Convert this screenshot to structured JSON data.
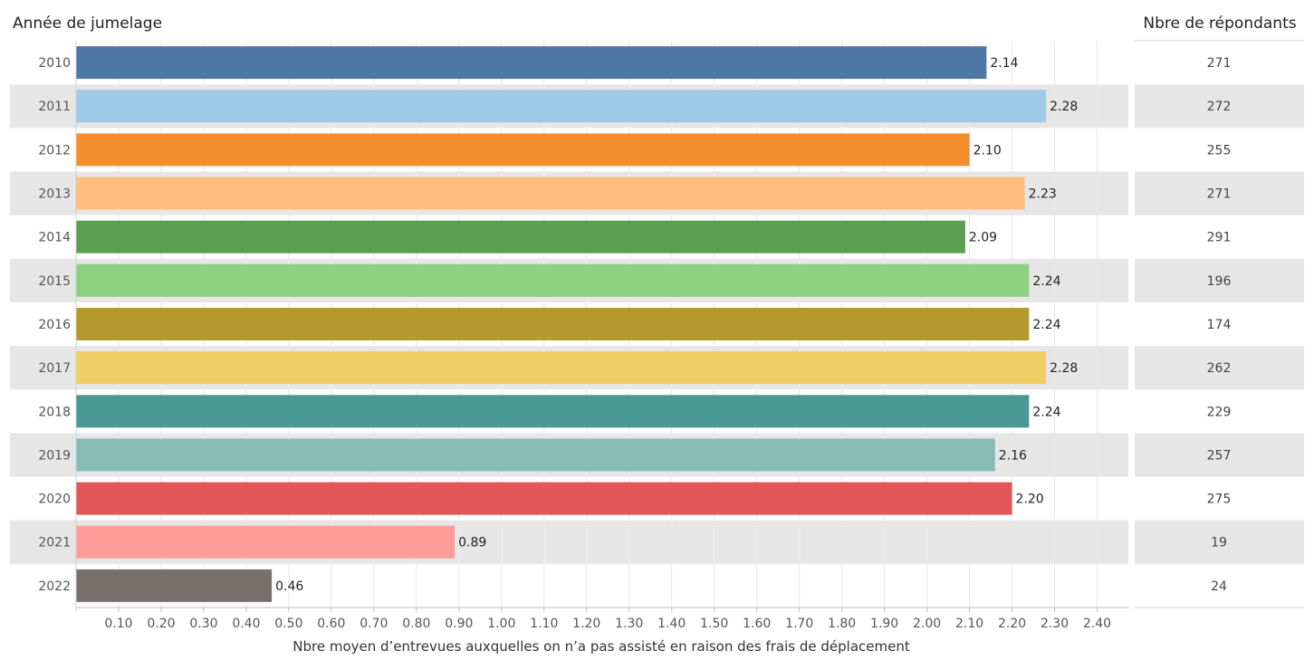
{
  "header": {
    "row_title": "Année de jumelage",
    "count_title": "Nbre de répondants"
  },
  "chart_data": {
    "type": "bar",
    "orientation": "horizontal",
    "xlabel": "Nbre moyen d’entrevues auxquelles on n’a pas assisté en raison des frais de déplacement",
    "xlim": [
      0,
      2.48
    ],
    "xticks": [
      0.1,
      0.2,
      0.3,
      0.4,
      0.5,
      0.6,
      0.7,
      0.8,
      0.9,
      1.0,
      1.1,
      1.2,
      1.3,
      1.4,
      1.5,
      1.6,
      1.7,
      1.8,
      1.9,
      2.0,
      2.1,
      2.2,
      2.3,
      2.4
    ],
    "xtick_labels": [
      "0.10",
      "0.20",
      "0.30",
      "0.40",
      "0.50",
      "0.60",
      "0.70",
      "0.80",
      "0.90",
      "1.00",
      "1.10",
      "1.20",
      "1.30",
      "1.40",
      "1.50",
      "1.60",
      "1.70",
      "1.80",
      "1.90",
      "2.00",
      "2.10",
      "2.20",
      "2.30",
      "2.40"
    ],
    "categories": [
      "2010",
      "2011",
      "2012",
      "2013",
      "2014",
      "2015",
      "2016",
      "2017",
      "2018",
      "2019",
      "2020",
      "2021",
      "2022"
    ],
    "values": [
      2.14,
      2.28,
      2.1,
      2.23,
      2.09,
      2.24,
      2.24,
      2.28,
      2.24,
      2.16,
      2.2,
      0.89,
      0.46
    ],
    "value_labels": [
      "2.14",
      "2.28",
      "2.10",
      "2.23",
      "2.09",
      "2.24",
      "2.24",
      "2.28",
      "2.24",
      "2.16",
      "2.20",
      "0.89",
      "0.46"
    ],
    "colors": [
      "#4e79a7",
      "#a0cbe8",
      "#f28e2b",
      "#ffbe7d",
      "#59a14f",
      "#8cd17d",
      "#b6992d",
      "#f1ce63",
      "#499894",
      "#86bcb6",
      "#e15759",
      "#ff9d9a",
      "#79706e"
    ],
    "respondents": [
      "271",
      "272",
      "255",
      "271",
      "291",
      "196",
      "174",
      "262",
      "229",
      "257",
      "275",
      "19",
      "24"
    ],
    "band_color": "#e6e6e6",
    "grid": true
  }
}
